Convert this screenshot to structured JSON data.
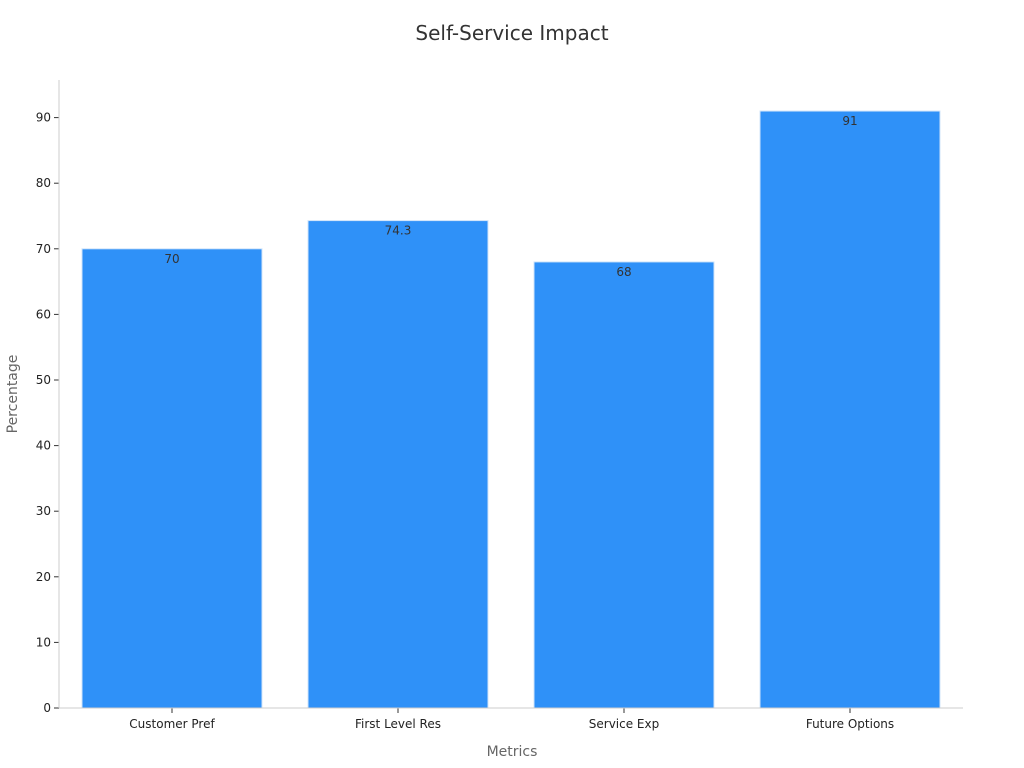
{
  "chart_data": {
    "type": "bar",
    "title": "Self-Service Impact",
    "xlabel": "Metrics",
    "ylabel": "Percentage",
    "categories": [
      "Customer Pref",
      "First Level Res",
      "Service Exp",
      "Future Options"
    ],
    "values": [
      70,
      74.3,
      68,
      91
    ],
    "data_labels": [
      "70",
      "74.3",
      "68",
      "91"
    ],
    "ylim": [
      0,
      95.5
    ],
    "yticks": [
      0,
      10,
      20,
      30,
      40,
      50,
      60,
      70,
      80,
      90
    ],
    "grid": false,
    "legend": "none",
    "colors": {
      "bar": "#2f91f8",
      "bar_edge": "#d0e4fa",
      "axis": "#cccccc"
    }
  }
}
